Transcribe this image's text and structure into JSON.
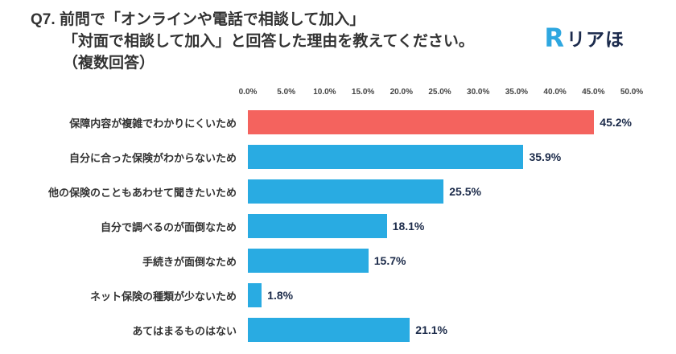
{
  "header": {
    "title_line1": "Q7. 前問で「オンラインや電話で相談して加入」",
    "title_line2": "「対面で相談して加入」と回答した理由を教えてください。",
    "title_line3": "（複数回答）",
    "logo_mark": "R",
    "logo_text": "リアほ"
  },
  "chart_data": {
    "type": "bar",
    "orientation": "horizontal",
    "title": "Q7. 前問で「オンラインや電話で相談して加入」「対面で相談して加入」と回答した理由を教えてください。（複数回答）",
    "categories": [
      "保障内容が複雑でわかりにくいため",
      "自分に合った保険がわからないため",
      "他の保険のこともあわせて聞きたいため",
      "自分で調べるのが面倒なため",
      "手続きが面倒なため",
      "ネット保険の種類が少ないため",
      "あてはまるものはない"
    ],
    "values": [
      45.2,
      35.9,
      25.5,
      18.1,
      15.7,
      1.8,
      21.1
    ],
    "value_labels": [
      "45.2%",
      "35.9%",
      "25.5%",
      "18.1%",
      "15.7%",
      "1.8%",
      "21.1%"
    ],
    "x_ticks": [
      "0.0%",
      "5.0%",
      "10.0%",
      "15.0%",
      "20.0%",
      "25.0%",
      "30.0%",
      "35.0%",
      "40.0%",
      "45.0%",
      "50.0%"
    ],
    "xlim": [
      0,
      50
    ],
    "grid": false,
    "legend": "none",
    "bar_colors": [
      "#F4635E",
      "#29ABE2",
      "#29ABE2",
      "#29ABE2",
      "#29ABE2",
      "#29ABE2",
      "#29ABE2"
    ],
    "highlight_color": "#F4635E",
    "default_color": "#29ABE2",
    "value_label_color": "#1C2B4A"
  }
}
